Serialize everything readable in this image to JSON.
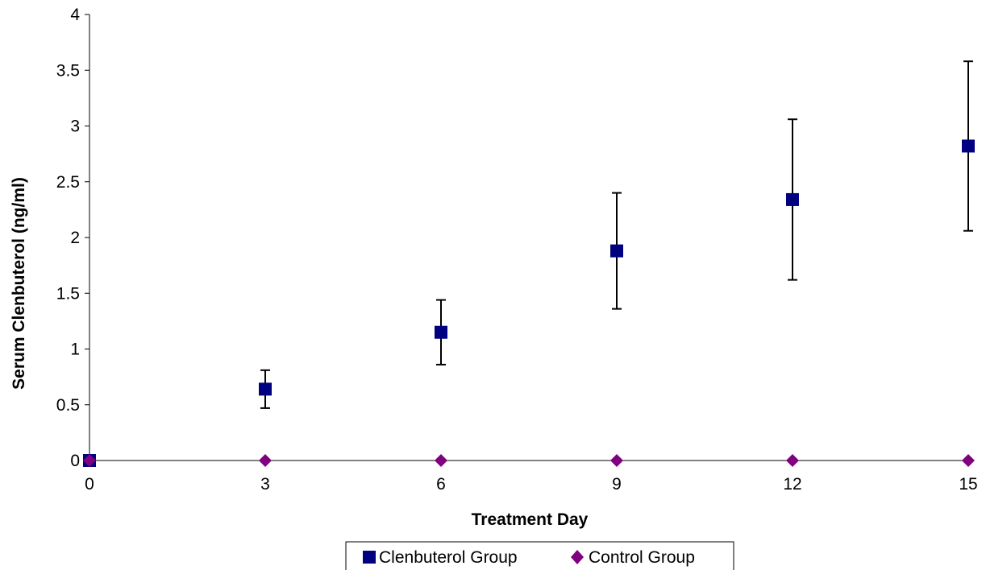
{
  "chart_data": {
    "type": "scatter",
    "title": "",
    "xlabel": "Treatment Day",
    "ylabel": "Serum Clenbuterol (ng/ml)",
    "xlim": [
      0,
      15
    ],
    "ylim": [
      0,
      4
    ],
    "xticks": [
      0,
      3,
      6,
      9,
      12,
      15
    ],
    "yticks": [
      0,
      0.5,
      1,
      1.5,
      2,
      2.5,
      3,
      3.5,
      4
    ],
    "grid": false,
    "legend_position": "bottom",
    "series": [
      {
        "name": "Clenbuterol Group",
        "marker": "square",
        "color": "#000080",
        "x": [
          0,
          3,
          6,
          9,
          12,
          15
        ],
        "y": [
          0,
          0.64,
          1.15,
          1.88,
          2.34,
          2.82
        ],
        "error": [
          0,
          0.17,
          0.29,
          0.52,
          0.72,
          0.76
        ]
      },
      {
        "name": "Control Group",
        "marker": "diamond",
        "color": "#800080",
        "x": [
          0,
          3,
          6,
          9,
          12,
          15
        ],
        "y": [
          0,
          0,
          0,
          0,
          0,
          0
        ]
      }
    ]
  }
}
